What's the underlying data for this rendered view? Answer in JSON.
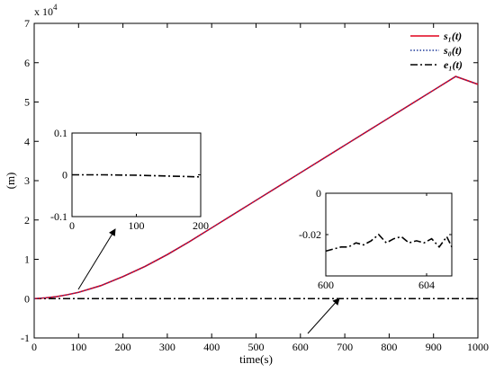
{
  "chart_data": {
    "type": "line",
    "xlabel": "time(s)",
    "ylabel": "(m)",
    "y_scale_label": "x 10",
    "y_scale_exponent": "4",
    "xlim": [
      0,
      1000
    ],
    "ylim": [
      -1,
      7
    ],
    "x_ticks": [
      "0",
      "100",
      "200",
      "300",
      "400",
      "500",
      "600",
      "700",
      "800",
      "900",
      "1000"
    ],
    "y_ticks": [
      "-1",
      "0",
      "1",
      "2",
      "3",
      "4",
      "5",
      "6",
      "7"
    ],
    "legend_position": "top-right",
    "legend": [
      {
        "label": "s₁(t)",
        "color": "#e0001b",
        "style": "solid"
      },
      {
        "label": "s₀(t)",
        "color": "#1f3a9a",
        "style": "dotted"
      },
      {
        "label": "e₁(t)",
        "color": "#000000",
        "style": "dashdot"
      }
    ],
    "series": [
      {
        "name": "s₁(t)",
        "color": "#e0001b",
        "style": "solid",
        "x": [
          0,
          25,
          50,
          75,
          100,
          150,
          200,
          250,
          300,
          350,
          400,
          450,
          500,
          550,
          600,
          650,
          700,
          750,
          800,
          850,
          900,
          950,
          1000
        ],
        "y": [
          0,
          0.02,
          0.05,
          0.1,
          0.16,
          0.33,
          0.56,
          0.82,
          1.12,
          1.45,
          1.8,
          2.15,
          2.5,
          2.85,
          3.2,
          3.55,
          3.9,
          4.25,
          4.6,
          4.95,
          5.3,
          5.65,
          5.45
        ]
      },
      {
        "name": "s₀(t)",
        "color": "#1f3a9a",
        "style": "dotted",
        "x": [
          0,
          25,
          50,
          75,
          100,
          150,
          200,
          250,
          300,
          350,
          400,
          450,
          500,
          550,
          600,
          650,
          700,
          750,
          800,
          850,
          900,
          950,
          1000
        ],
        "y": [
          0,
          0.02,
          0.05,
          0.1,
          0.16,
          0.33,
          0.56,
          0.82,
          1.12,
          1.45,
          1.8,
          2.15,
          2.5,
          2.85,
          3.2,
          3.55,
          3.9,
          4.25,
          4.6,
          4.95,
          5.3,
          5.65,
          5.45
        ]
      },
      {
        "name": "e₁(t)",
        "color": "#000000",
        "style": "dashdot",
        "x": [
          0,
          1000
        ],
        "y": [
          0,
          0
        ]
      }
    ],
    "insets": [
      {
        "xlim": [
          0,
          200
        ],
        "ylim": [
          -0.1,
          0.1
        ],
        "x_ticks": [
          "0",
          "100",
          "200"
        ],
        "y_ticks": [
          "-0.1",
          "0",
          "0.1"
        ],
        "series": [
          {
            "name": "e₁(t)",
            "style": "dashdot",
            "color": "#000000",
            "x": [
              0,
              50,
              100,
              150,
              200
            ],
            "y": [
              0.0,
              0.0,
              -0.001,
              -0.003,
              -0.005
            ]
          }
        ]
      },
      {
        "xlim": [
          600,
          605
        ],
        "ylim": [
          -0.04,
          0
        ],
        "x_ticks": [
          "600",
          "604"
        ],
        "y_ticks": [
          "0",
          "-0.02"
        ],
        "series": [
          {
            "name": "e₁(t)",
            "style": "dashdot",
            "color": "#000000",
            "x": [
              600,
              600.3,
              600.6,
              600.9,
              601.2,
              601.5,
              601.8,
              602.1,
              602.4,
              602.7,
              603.0,
              603.3,
              603.6,
              603.9,
              604.2,
              604.5,
              604.8,
              605
            ],
            "y": [
              -0.028,
              -0.027,
              -0.026,
              -0.026,
              -0.024,
              -0.025,
              -0.023,
              -0.02,
              -0.024,
              -0.022,
              -0.021,
              -0.024,
              -0.023,
              -0.024,
              -0.022,
              -0.026,
              -0.021,
              -0.026
            ]
          }
        ]
      }
    ]
  }
}
